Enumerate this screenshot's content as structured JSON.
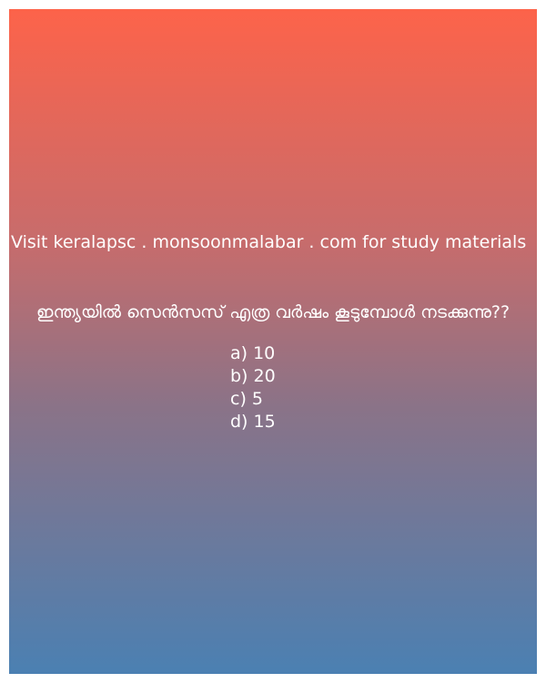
{
  "promo_text": "Visit keralapsc . monsoonmalabar . com for study materials",
  "question": "ഇന്ത്യയിൽ സെൻസസ് എത്ര വർഷം കൂടുമ്പോൾ നടക്കുന്നു??",
  "options": [
    "a) 10",
    "b) 20",
    "c) 5",
    "d) 15"
  ],
  "colors": {
    "gradient_top": "#fd634a",
    "gradient_bottom": "#4b80b2",
    "text": "#ffffff"
  }
}
